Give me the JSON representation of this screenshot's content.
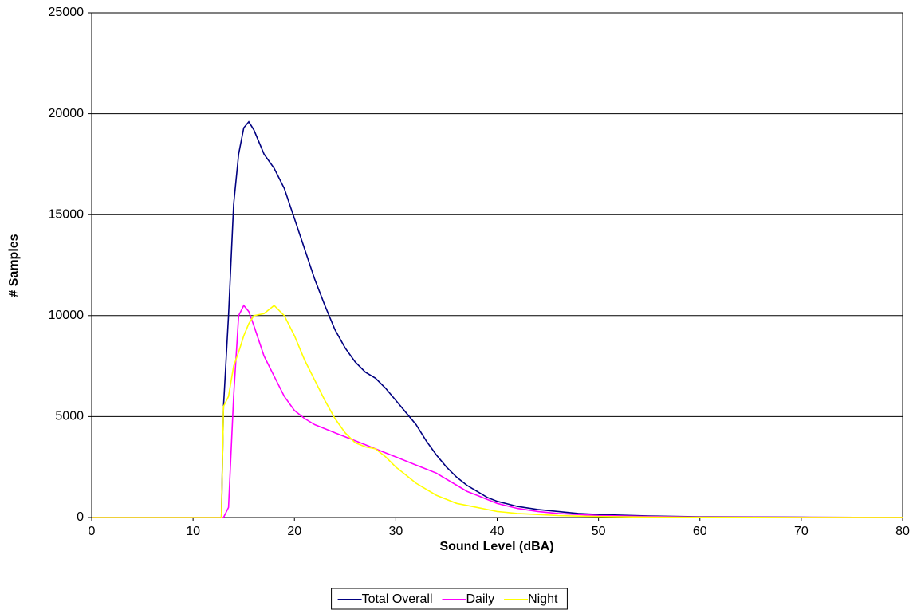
{
  "chart_data": {
    "type": "line",
    "xlabel": "Sound Level (dBA)",
    "ylabel": "# Samples",
    "x": [
      0,
      12.8,
      13,
      13.5,
      14,
      14.5,
      15,
      15.5,
      16,
      17,
      18,
      19,
      20,
      21,
      22,
      23,
      24,
      25,
      26,
      27,
      28,
      29,
      30,
      31,
      32,
      33,
      34,
      35,
      36,
      37,
      38,
      39,
      40,
      42,
      44,
      46,
      48,
      50,
      55,
      60,
      70,
      80
    ],
    "series": [
      {
        "name": "Total Overall",
        "color": "#000080",
        "values": [
          0,
          0,
          5500,
          10000,
          15500,
          18000,
          19300,
          19600,
          19200,
          18000,
          17300,
          16300,
          14800,
          13300,
          11800,
          10500,
          9300,
          8400,
          7700,
          7200,
          6900,
          6400,
          5800,
          5200,
          4600,
          3800,
          3100,
          2500,
          2000,
          1600,
          1300,
          1000,
          800,
          550,
          400,
          300,
          200,
          150,
          80,
          40,
          15,
          5
        ]
      },
      {
        "name": "Daily",
        "color": "#ff00ff",
        "values": [
          0,
          0,
          0,
          500,
          6000,
          10000,
          10500,
          10200,
          9500,
          8000,
          7000,
          6000,
          5300,
          4900,
          4600,
          4400,
          4200,
          4000,
          3800,
          3600,
          3400,
          3200,
          3000,
          2800,
          2600,
          2400,
          2200,
          1900,
          1600,
          1300,
          1100,
          900,
          700,
          450,
          300,
          200,
          150,
          100,
          50,
          25,
          10,
          5
        ]
      },
      {
        "name": "Night",
        "color": "#ffff00",
        "values": [
          0,
          0,
          5500,
          6000,
          7500,
          8200,
          9000,
          9600,
          10000,
          10100,
          10500,
          10000,
          9000,
          7800,
          6800,
          5800,
          4900,
          4200,
          3700,
          3500,
          3400,
          3000,
          2500,
          2100,
          1700,
          1400,
          1100,
          900,
          700,
          600,
          500,
          400,
          300,
          200,
          150,
          100,
          70,
          50,
          25,
          10,
          5,
          2
        ]
      }
    ],
    "xlim": [
      0,
      80
    ],
    "xticks": [
      0,
      10,
      20,
      30,
      40,
      50,
      60,
      70,
      80
    ],
    "ylim": [
      0,
      25000
    ],
    "yticks": [
      0,
      5000,
      10000,
      15000,
      20000,
      25000
    ],
    "grid": true,
    "legend": "bottom"
  }
}
